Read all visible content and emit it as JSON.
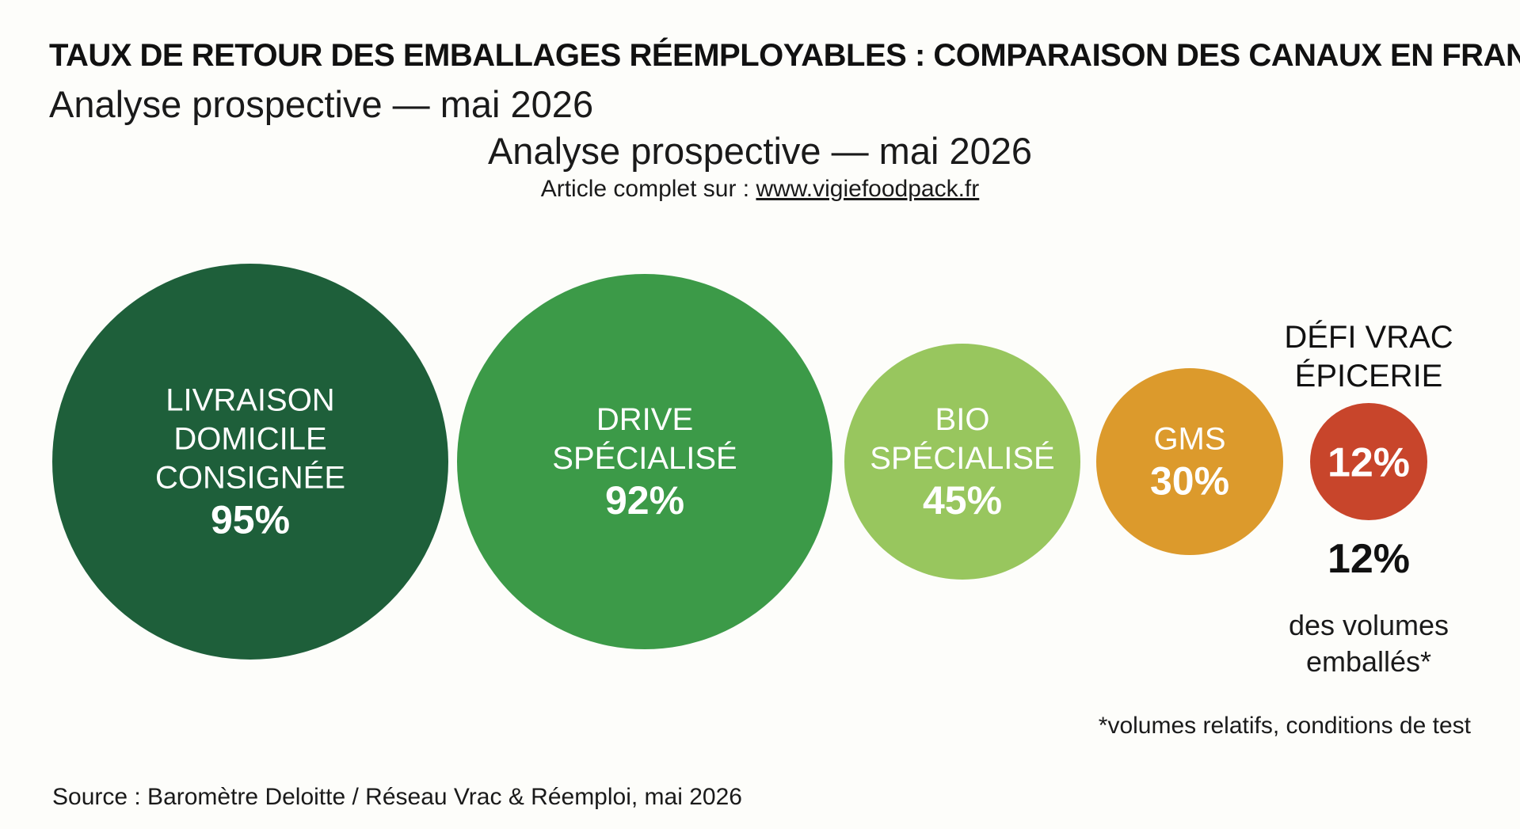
{
  "chart_data": {
    "type": "bubble",
    "title": "TAUX DE RETOUR DES EMBALLAGES RÉEMPLOYABLES : COMPARAISON DES CANAUX EN FRANCE",
    "subtitle": "Analyse prospective — mai 2026",
    "unit": "%",
    "series": [
      {
        "label_lines": [
          "LIVRAISON",
          "DOMICILE",
          "CONSIGNÉE"
        ],
        "value": 95,
        "value_label": "95%",
        "color": "#1e5f3a"
      },
      {
        "label_lines": [
          "DRIVE",
          "SPÉCIALISÉ"
        ],
        "value": 92,
        "value_label": "92%",
        "color": "#3c9a48"
      },
      {
        "label_lines": [
          "BIO",
          "SPÉCIALISÉ"
        ],
        "value": 45,
        "value_label": "45%",
        "color": "#98c65e"
      },
      {
        "label_lines": [
          "GMS"
        ],
        "value": 30,
        "value_label": "30%",
        "color": "#dc9a2c"
      },
      {
        "label_lines": [],
        "value": 12,
        "value_label": "12%",
        "color": "#c8452b"
      }
    ],
    "callout": {
      "heading_lines": [
        "DÉFI VRAC",
        "ÉPICERIE"
      ],
      "value_label": "12%",
      "desc_lines": [
        "des volumes",
        "emballés*"
      ]
    }
  },
  "header": {
    "title": "TAUX DE RETOUR DES EMBALLAGES RÉEMPLOYABLES : COMPARAISON DES CANAUX EN FRANCE",
    "subtitle_left": "Analyse prospective — mai 2026",
    "subtitle_center": "Analyse prospective — mai 2026",
    "article_prefix": "Article complet sur : ",
    "article_link": "www.vigiefoodpack.fr"
  },
  "footer": {
    "footnote": "*volumes relatifs, conditions de test",
    "source": "Source : Baromètre Deloitte / Réseau Vrac & Réemploi, mai 2026"
  }
}
